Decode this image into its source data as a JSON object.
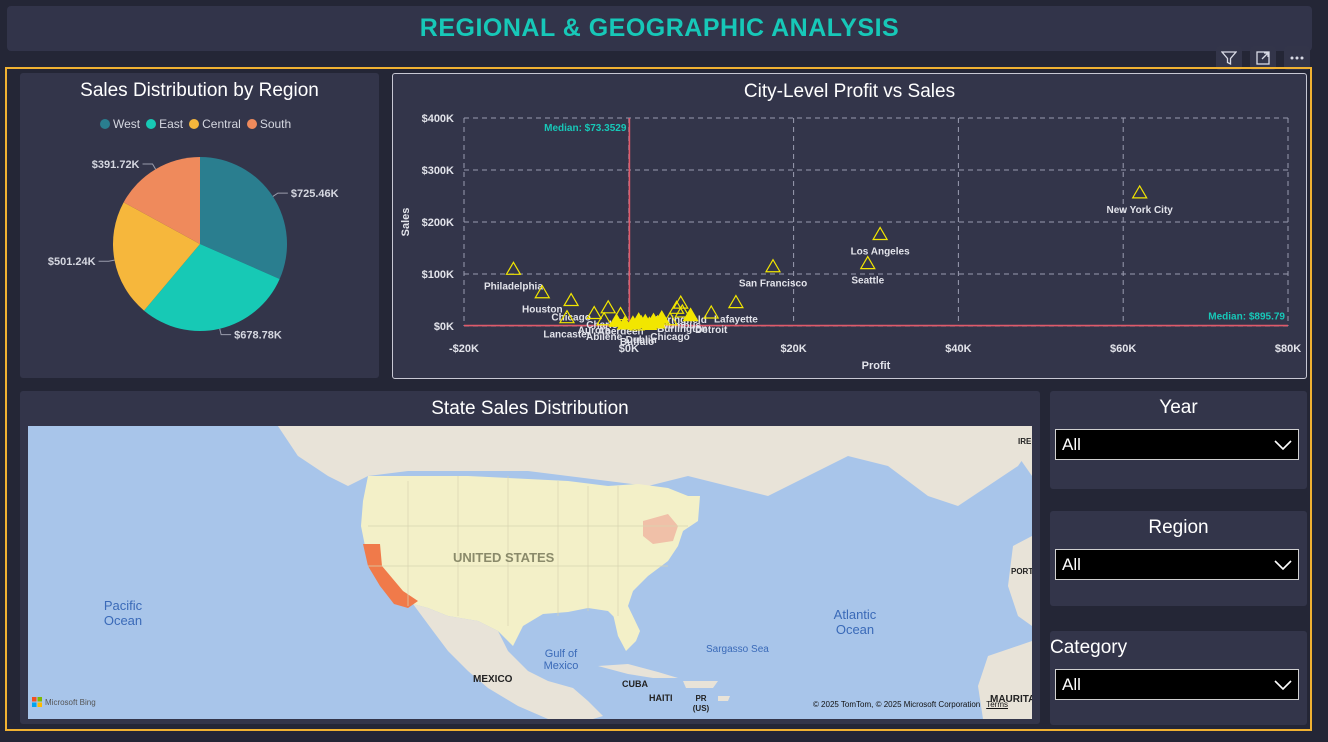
{
  "header": {
    "title": "REGIONAL & GEOGRAPHIC ANALYSIS"
  },
  "toolbar": {
    "icons": [
      "filter-icon",
      "focus-mode-icon",
      "more-options-icon"
    ]
  },
  "pie_panel": {
    "title": "Sales Distribution by Region",
    "legend": [
      {
        "label": "West",
        "color": "#2a7e8f"
      },
      {
        "label": "East",
        "color": "#17c9b5"
      },
      {
        "label": "Central",
        "color": "#f6b73c"
      },
      {
        "label": "South",
        "color": "#ef8a5c"
      }
    ]
  },
  "scatter_panel": {
    "title": "City-Level Profit vs Sales",
    "median_y_label": "Median: $73.3529",
    "median_x_label": "Median: $895.79"
  },
  "map_panel": {
    "title": "State Sales Distribution",
    "labels": {
      "us": "UNITED STATES",
      "pacific": "Pacific\nOcean",
      "atlantic": "Atlantic\nOcean",
      "gulf": "Gulf of\nMexico",
      "sargasso": "Sargasso Sea",
      "mexico": "MEXICO",
      "cuba": "CUBA",
      "haiti": "HAITI",
      "pr": "PR\n(US)",
      "ireland": "IRE",
      "portugal": "PORT",
      "mauritania": "MAURITA",
      "bing": "Microsoft Bing",
      "copyright": "© 2025 TomTom, © 2025 Microsoft Corporation",
      "terms": "Terms"
    }
  },
  "slicers": [
    {
      "title": "Year",
      "value": "All"
    },
    {
      "title": "Region",
      "value": "All"
    },
    {
      "title": "Category",
      "value": "All"
    }
  ],
  "chart_data": [
    {
      "type": "pie",
      "title": "Sales Distribution by Region",
      "slices": [
        {
          "label": "West",
          "value": 725.46,
          "display": "$725.46K",
          "color": "#2a7e8f"
        },
        {
          "label": "East",
          "value": 678.78,
          "display": "$678.78K",
          "color": "#17c9b5"
        },
        {
          "label": "Central",
          "value": 501.24,
          "display": "$501.24K",
          "color": "#f6b73c"
        },
        {
          "label": "South",
          "value": 391.72,
          "display": "$391.72K",
          "color": "#ef8a5c"
        }
      ],
      "legend_placement": "top"
    },
    {
      "type": "scatter",
      "title": "City-Level Profit vs Sales",
      "xlabel": "Profit",
      "ylabel": "Sales",
      "xlim": [
        -20000,
        80000
      ],
      "ylim": [
        0,
        400000
      ],
      "x_ticks": [
        "-$20K",
        "$0K",
        "$20K",
        "$40K",
        "$60K",
        "$80K"
      ],
      "y_ticks": [
        "$0K",
        "$100K",
        "$200K",
        "$300K",
        "$400K"
      ],
      "grid": true,
      "marker_color": "#f2e600",
      "median_x": 73.3529,
      "median_y": 895.79,
      "points": [
        {
          "label": "New York City",
          "x": 62000,
          "y": 256000
        },
        {
          "label": "Los Angeles",
          "x": 30500,
          "y": 176000
        },
        {
          "label": "Seattle",
          "x": 29000,
          "y": 120000
        },
        {
          "label": "San Francisco",
          "x": 17500,
          "y": 114000
        },
        {
          "label": "Philadelphia",
          "x": -14000,
          "y": 109000
        },
        {
          "label": "Houston",
          "x": -10500,
          "y": 64000
        },
        {
          "label": "Chicago",
          "x": -7000,
          "y": 49000
        },
        {
          "label": "Lancaster",
          "x": -7500,
          "y": 16000
        },
        {
          "label": "Springfield",
          "x": 6300,
          "y": 44000
        },
        {
          "label": "Columbus",
          "x": 5800,
          "y": 34000
        },
        {
          "label": "Lafayette",
          "x": 13000,
          "y": 45000
        },
        {
          "label": "Detroit",
          "x": 10000,
          "y": 25000
        },
        {
          "label": "Charlotte",
          "x": -2500,
          "y": 35000
        },
        {
          "label": "Aurora",
          "x": -4200,
          "y": 24000
        },
        {
          "label": "Aberdeen",
          "x": -1000,
          "y": 22000
        },
        {
          "label": "Abilene",
          "x": -3000,
          "y": 12000
        },
        {
          "label": "Burlington",
          "x": 6500,
          "y": 27000
        },
        {
          "label": "Dublin",
          "x": 1500,
          "y": 6000
        },
        {
          "label": "Buffalo",
          "x": 1000,
          "y": 2000
        },
        {
          "label": "Chicago",
          "x": 5000,
          "y": 12000
        },
        {
          "label": "",
          "x": 2000,
          "y": 8000
        },
        {
          "label": "",
          "x": 3000,
          "y": 10000
        },
        {
          "label": "",
          "x": 500,
          "y": 5000
        },
        {
          "label": "",
          "x": 4000,
          "y": 15000
        },
        {
          "label": "",
          "x": -500,
          "y": 4000
        },
        {
          "label": "",
          "x": 7500,
          "y": 20000
        },
        {
          "label": "",
          "x": 2500,
          "y": 3000
        },
        {
          "label": "",
          "x": -1500,
          "y": 9000
        },
        {
          "label": "",
          "x": 3500,
          "y": 6000
        },
        {
          "label": "",
          "x": 1200,
          "y": 11000
        }
      ]
    }
  ]
}
